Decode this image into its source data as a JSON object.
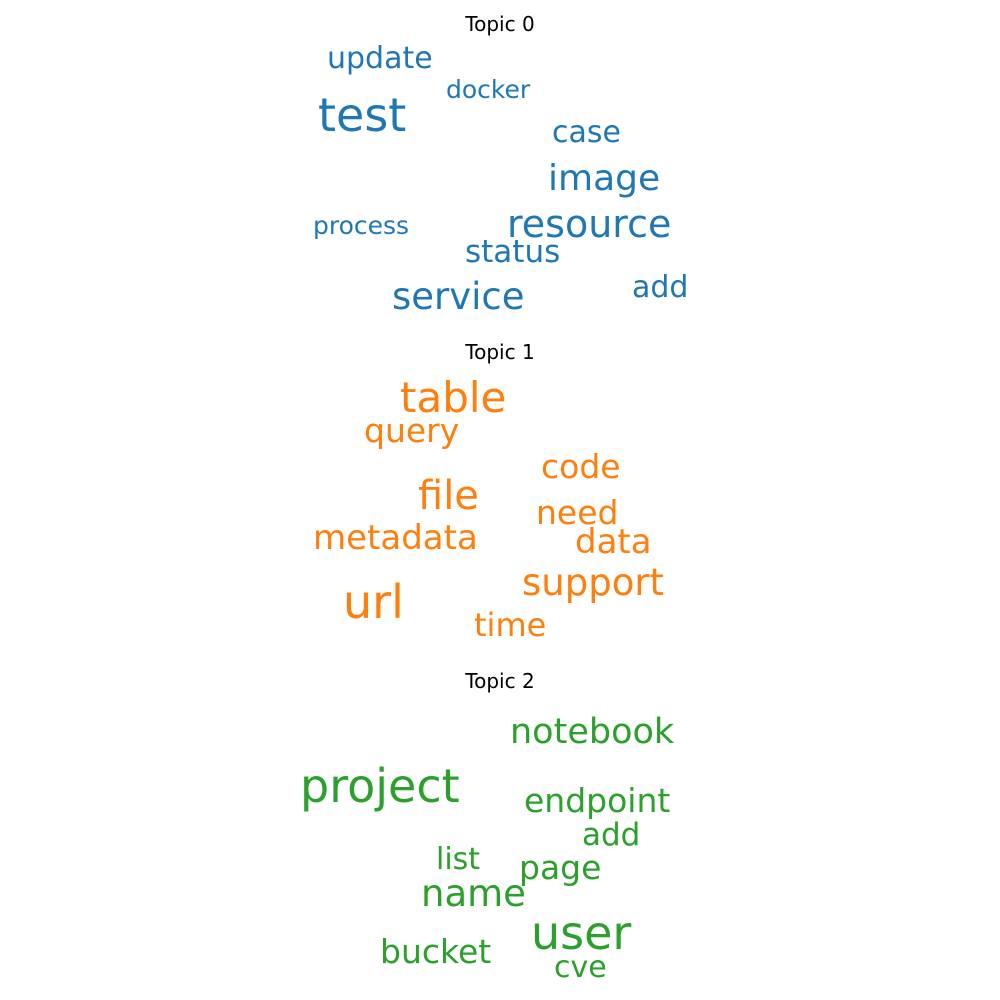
{
  "topics": [
    {
      "title": "Topic 0",
      "color": "#1f77b4",
      "words": [
        "test",
        "update",
        "docker",
        "case",
        "image",
        "resource",
        "process",
        "status",
        "service",
        "add"
      ]
    },
    {
      "title": "Topic 1",
      "color": "#ff7f0e",
      "words": [
        "table",
        "query",
        "code",
        "file",
        "need",
        "metadata",
        "data",
        "support",
        "url",
        "time"
      ]
    },
    {
      "title": "Topic 2",
      "color": "#2ca02c",
      "words": [
        "notebook",
        "project",
        "endpoint",
        "add",
        "list",
        "page",
        "name",
        "user",
        "bucket",
        "cve"
      ]
    }
  ]
}
